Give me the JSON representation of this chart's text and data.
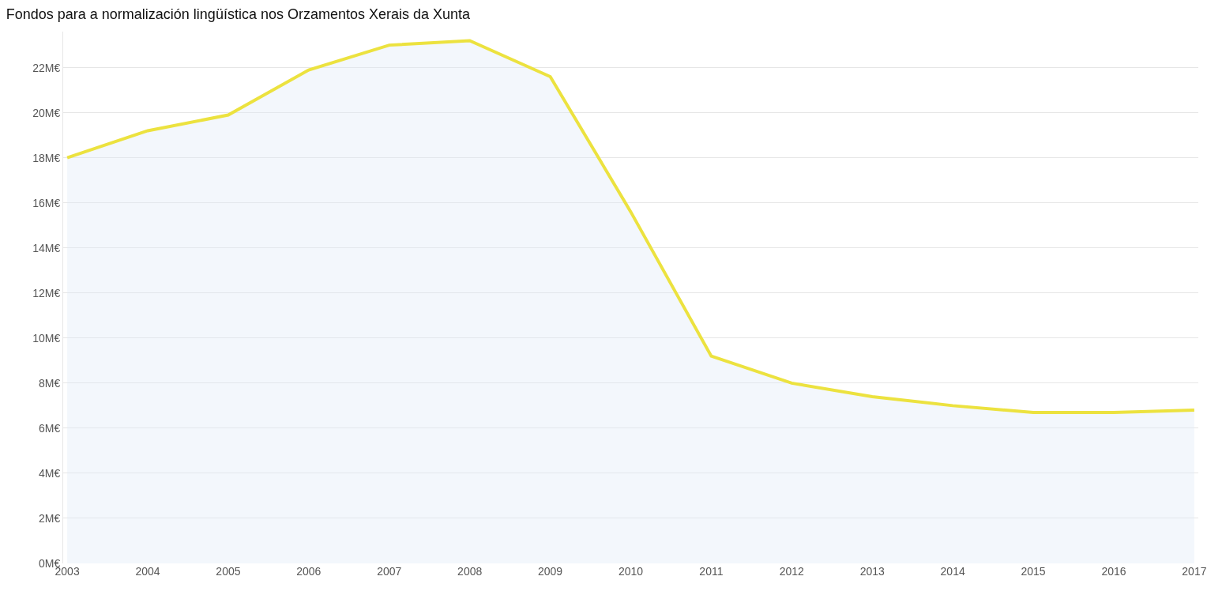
{
  "chart_data": {
    "type": "area",
    "title": "Fondos para a normalización lingüística nos Orzamentos Xerais da Xunta",
    "categories": [
      "2003",
      "2004",
      "2005",
      "2006",
      "2007",
      "2008",
      "2009",
      "2010",
      "2011",
      "2012",
      "2013",
      "2014",
      "2015",
      "2016",
      "2017"
    ],
    "series": [
      {
        "color": "#ece23f",
        "values": [
          18.0,
          19.2,
          19.9,
          21.9,
          23.0,
          23.2,
          21.6,
          15.6,
          9.2,
          8.0,
          7.4,
          7.0,
          6.7,
          6.7,
          6.8
        ]
      }
    ],
    "ylim": [
      0,
      23.6
    ],
    "yticks": [
      {
        "value": 0,
        "label": "0M€"
      },
      {
        "value": 2,
        "label": "2M€"
      },
      {
        "value": 4,
        "label": "4M€"
      },
      {
        "value": 6,
        "label": "6M€"
      },
      {
        "value": 8,
        "label": "8M€"
      },
      {
        "value": 10,
        "label": "10M€"
      },
      {
        "value": 12,
        "label": "12M€"
      },
      {
        "value": 14,
        "label": "14M€"
      },
      {
        "value": 16,
        "label": "16M€"
      },
      {
        "value": 18,
        "label": "18M€"
      },
      {
        "value": 20,
        "label": "20M€"
      },
      {
        "value": 22,
        "label": "22M€"
      }
    ],
    "grid": "y",
    "marker": "none",
    "line_style": "solid"
  }
}
